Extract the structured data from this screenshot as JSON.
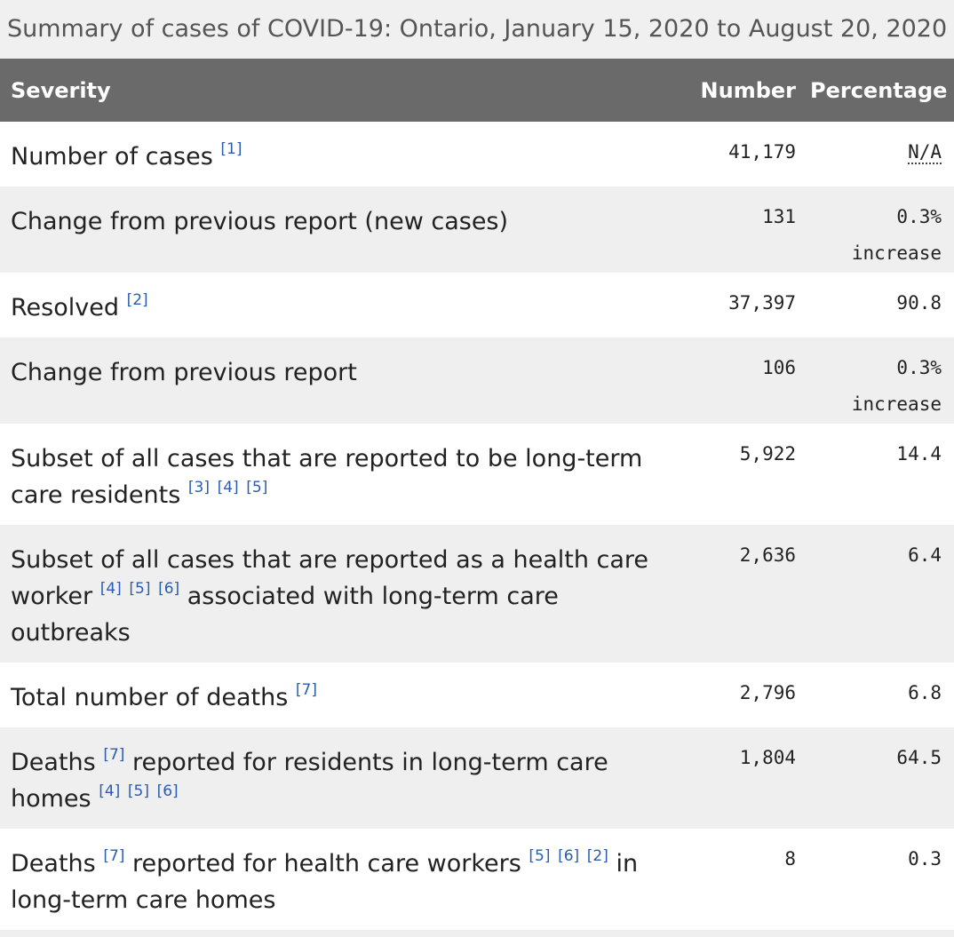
{
  "caption": "Summary of cases of COVID-19: Ontario, January 15, 2020 to August 20, 2020",
  "header": {
    "severity": "Severity",
    "number": "Number",
    "percentage": "Percentage"
  },
  "rows": [
    {
      "label_parts": [
        "Number of cases"
      ],
      "refs": [
        [
          "[1]"
        ]
      ],
      "number": "41,179",
      "percentage": "N/A",
      "percentage_note": ""
    },
    {
      "label_parts": [
        "Change from previous report (new cases)"
      ],
      "refs": [],
      "number": "131",
      "percentage": "0.3%",
      "percentage_note": "increase"
    },
    {
      "label_parts": [
        "Resolved"
      ],
      "refs": [
        [
          "[2]"
        ]
      ],
      "number": "37,397",
      "percentage": "90.8",
      "percentage_note": ""
    },
    {
      "label_parts": [
        "Change from previous report"
      ],
      "refs": [],
      "number": "106",
      "percentage": "0.3%",
      "percentage_note": "increase"
    },
    {
      "label_parts": [
        "Subset of all cases that are reported to be long-term care residents"
      ],
      "refs": [
        [
          "[3]",
          "[4]",
          "[5]"
        ]
      ],
      "number": "5,922",
      "percentage": "14.4",
      "percentage_note": ""
    },
    {
      "label_parts": [
        "Subset of all cases that are reported as a health care worker",
        "associated with long-term care outbreaks"
      ],
      "refs": [
        [
          "[4]",
          "[5]",
          "[6]"
        ]
      ],
      "number": "2,636",
      "percentage": "6.4",
      "percentage_note": ""
    },
    {
      "label_parts": [
        "Total number of deaths"
      ],
      "refs": [
        [
          "[7]"
        ]
      ],
      "number": "2,796",
      "percentage": "6.8",
      "percentage_note": ""
    },
    {
      "label_parts": [
        "Deaths",
        "reported for residents in long-term care homes"
      ],
      "refs": [
        [
          "[7]"
        ],
        [
          "[4]",
          "[5]",
          "[6]"
        ]
      ],
      "number": "1,804",
      "percentage": "64.5",
      "percentage_note": ""
    },
    {
      "label_parts": [
        "Deaths",
        "reported for health care workers",
        "in long-term care homes"
      ],
      "refs": [
        [
          "[7]"
        ],
        [
          "[5]",
          "[6]",
          "[2]"
        ]
      ],
      "number": "8",
      "percentage": "0.3",
      "percentage_note": ""
    }
  ]
}
